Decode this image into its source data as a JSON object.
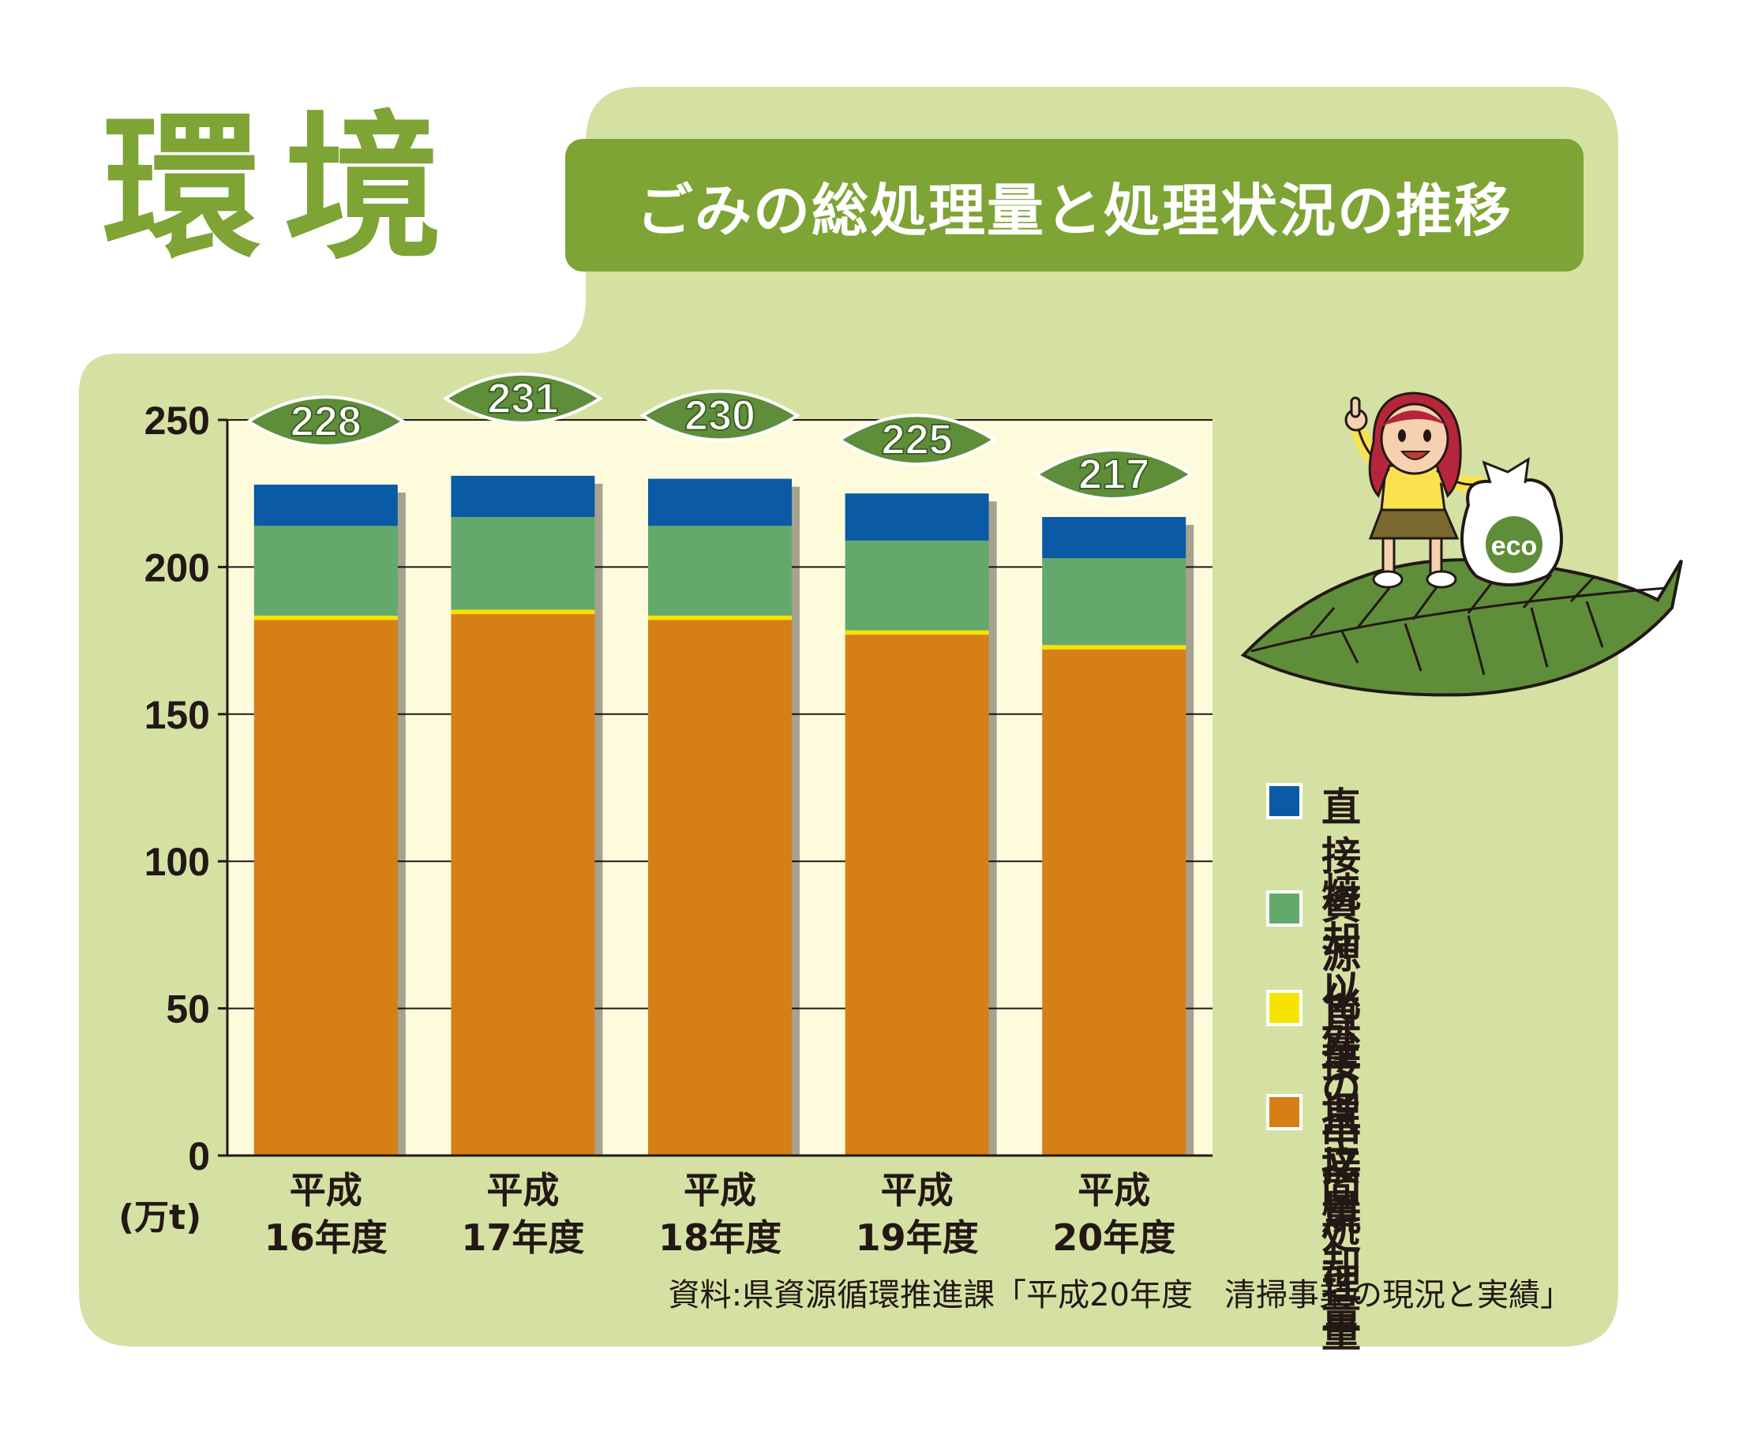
{
  "header": {
    "section_heading": "環境",
    "title": "ごみの総処理量と処理状況の推移"
  },
  "chart_data": {
    "type": "bar",
    "stacked": true,
    "title": "ごみの総処理量と処理状況の推移",
    "ylabel": "(万t)",
    "xlabel": "",
    "ylim": [
      0,
      250
    ],
    "yticks": [
      0,
      50,
      100,
      150,
      200,
      250
    ],
    "grid": true,
    "legend_position": "right",
    "categories": [
      [
        "平成",
        "16年度"
      ],
      [
        "平成",
        "17年度"
      ],
      [
        "平成",
        "18年度"
      ],
      [
        "平成",
        "19年度"
      ],
      [
        "平成",
        "20年度"
      ]
    ],
    "totals": [
      228,
      231,
      230,
      225,
      217
    ],
    "series": [
      {
        "name": "直接焼却量",
        "color": "#d67f17",
        "values": [
          182,
          184,
          182,
          177,
          172
        ]
      },
      {
        "name": "直接埋立量",
        "color": "#f7e300",
        "values": [
          1.5,
          1.5,
          1.5,
          1.5,
          1.5
        ]
      },
      {
        "name": "焼却以外の\n中間処理量",
        "color": "#64a96c",
        "values": [
          30.5,
          31.5,
          30.5,
          30.5,
          29.5
        ]
      },
      {
        "name": "直接資源化量",
        "color": "#0a5aa5",
        "values": [
          14,
          14,
          16,
          16,
          14
        ]
      }
    ]
  },
  "legend_order": [
    3,
    2,
    1,
    0
  ],
  "illustration": {
    "bag_label": "eco"
  },
  "source": "資料:県資源循環推進課「平成20年度　清掃事業の現況と実績」",
  "colors": {
    "panel": "#d4e1a3",
    "accent": "#7da434",
    "plot_background": "#fdfbdc",
    "leaf_badge": "#5f8e3b"
  }
}
